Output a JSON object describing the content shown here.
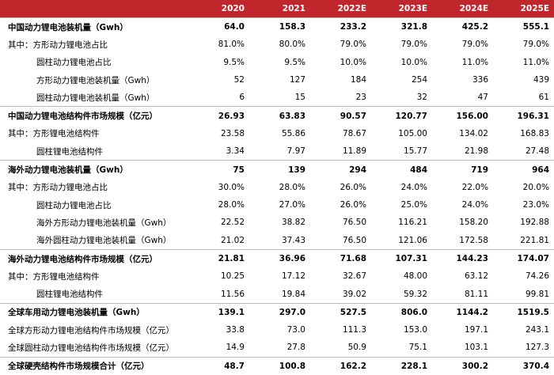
{
  "table": {
    "columns": [
      "2020",
      "2021",
      "2022E",
      "2023E",
      "2024E",
      "2025E"
    ],
    "rows": [
      {
        "label": "中国动力锂电池装机量（Gwh）",
        "bold": true,
        "cells": [
          "64.0",
          "158.3",
          "233.2",
          "321.8",
          "425.2",
          "555.1"
        ]
      },
      {
        "label": "其中：方形动力锂电池占比",
        "cells": [
          "81.0%",
          "80.0%",
          "79.0%",
          "79.0%",
          "79.0%",
          "79.0%"
        ]
      },
      {
        "label": "圆柱动力锂电池占比",
        "indent": true,
        "cells": [
          "9.5%",
          "9.5%",
          "10.0%",
          "10.0%",
          "11.0%",
          "11.0%"
        ]
      },
      {
        "label": "方形动力锂电池装机量（Gwh）",
        "indent": true,
        "cells": [
          "52",
          "127",
          "184",
          "254",
          "336",
          "439"
        ]
      },
      {
        "label": "圆柱动力锂电池装机量（Gwh）",
        "indent": true,
        "cells": [
          "6",
          "15",
          "23",
          "32",
          "47",
          "61"
        ]
      },
      {
        "label": "中国动力锂电池结构件市场规模（亿元）",
        "bold": true,
        "cells": [
          "26.93",
          "63.83",
          "90.57",
          "120.77",
          "156.00",
          "196.31"
        ]
      },
      {
        "label": "其中：方形锂电池结构件",
        "cells": [
          "23.58",
          "55.86",
          "78.67",
          "105.00",
          "134.02",
          "168.83"
        ]
      },
      {
        "label": "圆柱锂电池结构件",
        "indent": true,
        "cells": [
          "3.34",
          "7.97",
          "11.89",
          "15.77",
          "21.98",
          "27.48"
        ]
      },
      {
        "label": "海外动力锂电池装机量（Gwh）",
        "bold": true,
        "cells": [
          "75",
          "139",
          "294",
          "484",
          "719",
          "964"
        ]
      },
      {
        "label": "其中：方形动力锂电池占比",
        "cells": [
          "30.0%",
          "28.0%",
          "26.0%",
          "24.0%",
          "22.0%",
          "20.0%"
        ]
      },
      {
        "label": "圆柱动力锂电池占比",
        "indent": true,
        "cells": [
          "28.0%",
          "27.0%",
          "26.0%",
          "25.0%",
          "24.0%",
          "23.0%"
        ]
      },
      {
        "label": "海外方形动力锂电池装机量（Gwh）",
        "indent": true,
        "cells": [
          "22.52",
          "38.82",
          "76.50",
          "116.21",
          "158.20",
          "192.88"
        ]
      },
      {
        "label": "海外圆柱动力锂电池装机量（Gwh）",
        "indent": true,
        "cells": [
          "21.02",
          "37.43",
          "76.50",
          "121.06",
          "172.58",
          "221.81"
        ]
      },
      {
        "label": "海外动力锂电池结构件市场规模（亿元）",
        "bold": true,
        "cells": [
          "21.81",
          "36.96",
          "71.68",
          "107.31",
          "144.23",
          "174.07"
        ]
      },
      {
        "label": "其中：方形锂电池结构件",
        "cells": [
          "10.25",
          "17.12",
          "32.67",
          "48.00",
          "63.12",
          "74.26"
        ]
      },
      {
        "label": "圆柱锂电池结构件",
        "indent": true,
        "cells": [
          "11.56",
          "19.84",
          "39.02",
          "59.32",
          "81.11",
          "99.81"
        ]
      },
      {
        "label": "全球车用动力锂电池装机量（Gwh）",
        "bold": true,
        "cells": [
          "139.1",
          "297.0",
          "527.5",
          "806.0",
          "1144.2",
          "1519.5"
        ]
      },
      {
        "label": "全球方形动力锂电池结构件市场规模（亿元）",
        "cells": [
          "33.8",
          "73.0",
          "111.3",
          "153.0",
          "197.1",
          "243.1"
        ]
      },
      {
        "label": "全球圆柱动力锂电池结构件市场规模（亿元）",
        "cells": [
          "14.9",
          "27.8",
          "50.9",
          "75.1",
          "103.1",
          "127.3"
        ]
      },
      {
        "label": "全球硬壳结构件市场规模合计（亿元）",
        "bold": true,
        "cells": [
          "48.7",
          "100.8",
          "162.2",
          "228.1",
          "300.2",
          "370.4"
        ]
      }
    ]
  }
}
